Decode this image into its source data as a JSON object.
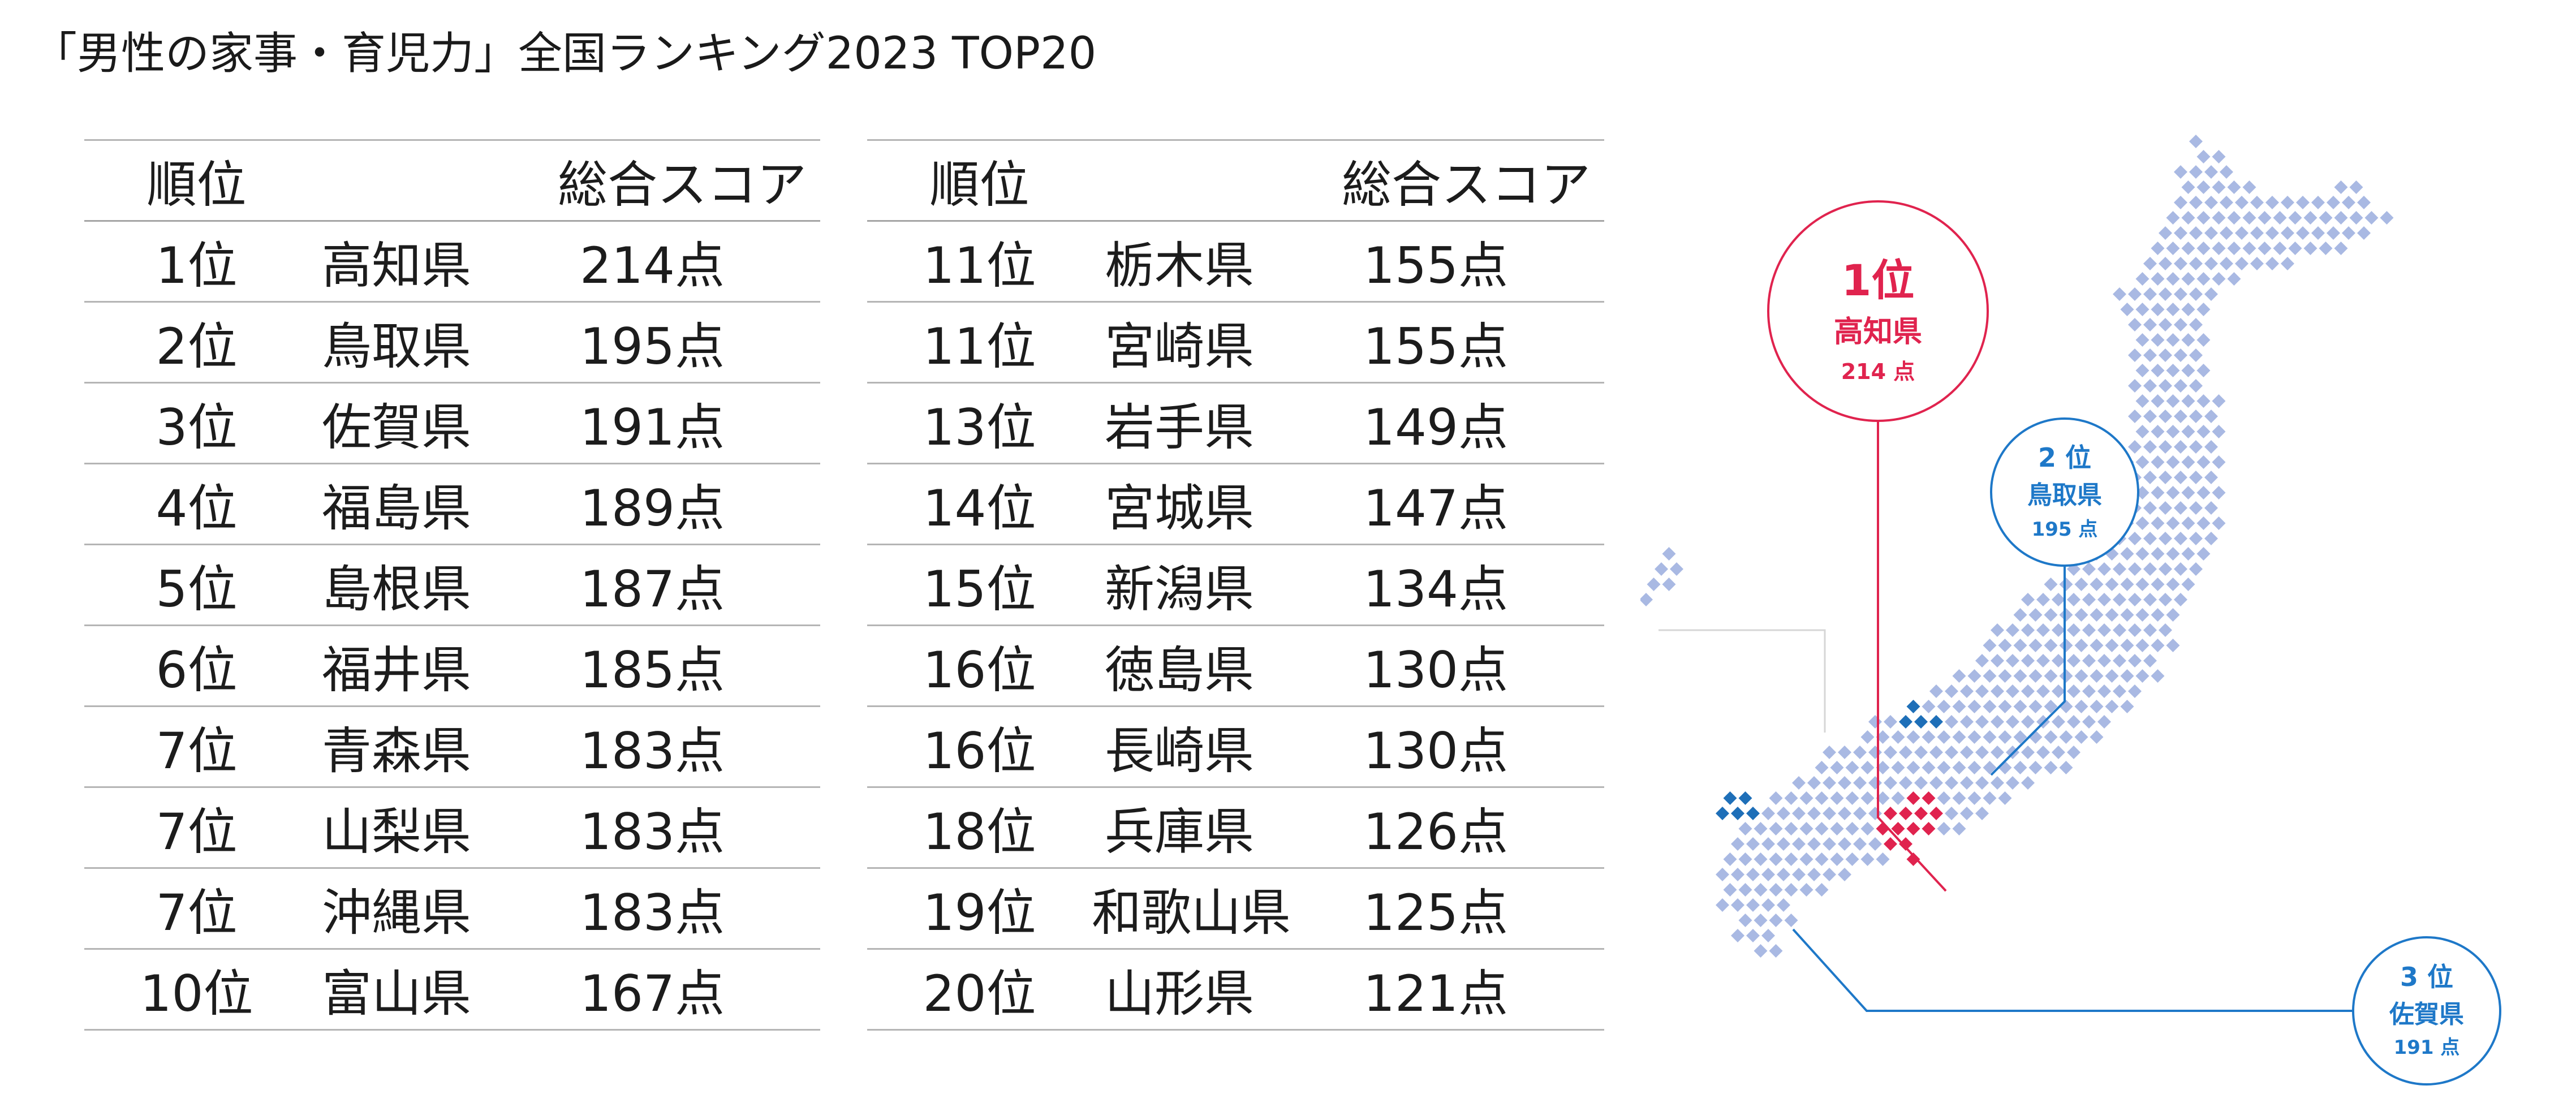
{
  "title": "「男性の家事・育児力」全国ランキング2023 TOP20",
  "headers": {
    "rank": "順位",
    "prefecture": "",
    "score": "総合スコア"
  },
  "rows_left": [
    {
      "rank": "1位",
      "pref": "高知県",
      "score": "214点"
    },
    {
      "rank": "2位",
      "pref": "鳥取県",
      "score": "195点"
    },
    {
      "rank": "3位",
      "pref": "佐賀県",
      "score": "191点"
    },
    {
      "rank": "4位",
      "pref": "福島県",
      "score": "189点"
    },
    {
      "rank": "5位",
      "pref": "島根県",
      "score": "187点"
    },
    {
      "rank": "6位",
      "pref": "福井県",
      "score": "185点"
    },
    {
      "rank": "7位",
      "pref": "青森県",
      "score": "183点"
    },
    {
      "rank": "7位",
      "pref": "山梨県",
      "score": "183点"
    },
    {
      "rank": "7位",
      "pref": "沖縄県",
      "score": "183点"
    },
    {
      "rank": "10位",
      "pref": "富山県",
      "score": "167点"
    }
  ],
  "rows_right": [
    {
      "rank": "11位",
      "pref": "栃木県",
      "score": "155点"
    },
    {
      "rank": "11位",
      "pref": "宮崎県",
      "score": "155点"
    },
    {
      "rank": "13位",
      "pref": "岩手県",
      "score": "149点"
    },
    {
      "rank": "14位",
      "pref": "宮城県",
      "score": "147点"
    },
    {
      "rank": "15位",
      "pref": "新潟県",
      "score": "134点"
    },
    {
      "rank": "16位",
      "pref": "徳島県",
      "score": "130点"
    },
    {
      "rank": "16位",
      "pref": "長崎県",
      "score": "130点"
    },
    {
      "rank": "18位",
      "pref": "兵庫県",
      "score": "126点"
    },
    {
      "rank": "19位",
      "pref": "和歌山県",
      "score": "125点"
    },
    {
      "rank": "20位",
      "pref": "山形県",
      "score": "121点"
    }
  ],
  "callouts": [
    {
      "rank": "1位",
      "pref": "高知県",
      "score": "214 点",
      "color": "#e0234e"
    },
    {
      "rank": "2 位",
      "pref": "鳥取県",
      "score": "195 点",
      "color": "#1e78c8"
    },
    {
      "rank": "3 位",
      "pref": "佐賀県",
      "score": "191 点",
      "color": "#1e78c8"
    }
  ],
  "colors": {
    "map_dot": "#a9b9e3",
    "highlight_red": "#e0234e",
    "highlight_blue": "#1e6fb8",
    "rule": "#b5b5b5"
  }
}
